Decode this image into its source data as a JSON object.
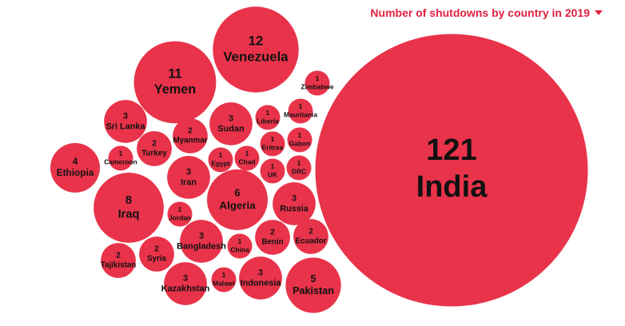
{
  "chart_data": {
    "type": "bubble",
    "title": "Number of shutdowns by country in 2019",
    "color": "#e8334a",
    "categories": [
      "India",
      "Venezuela",
      "Yemen",
      "Iraq",
      "Algeria",
      "Pakistan",
      "Ethiopia",
      "Sri Lanka",
      "Sudan",
      "Iran",
      "Russia",
      "Bangladesh",
      "Kazakhstan",
      "Indonesia",
      "Myanmar",
      "Turkey",
      "Benin",
      "Ecuador",
      "Syria",
      "Tajikistan",
      "Zimbabwe",
      "Liberia",
      "Mauritania",
      "Gabon",
      "Eritrea",
      "Cameroon",
      "Egypt",
      "Chad",
      "UK",
      "DRC",
      "Jordan",
      "China",
      "Malawi"
    ],
    "values": [
      121,
      12,
      11,
      8,
      6,
      5,
      4,
      3,
      3,
      3,
      3,
      3,
      3,
      3,
      2,
      2,
      2,
      2,
      2,
      2,
      1,
      1,
      1,
      1,
      1,
      1,
      1,
      1,
      1,
      1,
      1,
      1,
      1
    ]
  }
}
